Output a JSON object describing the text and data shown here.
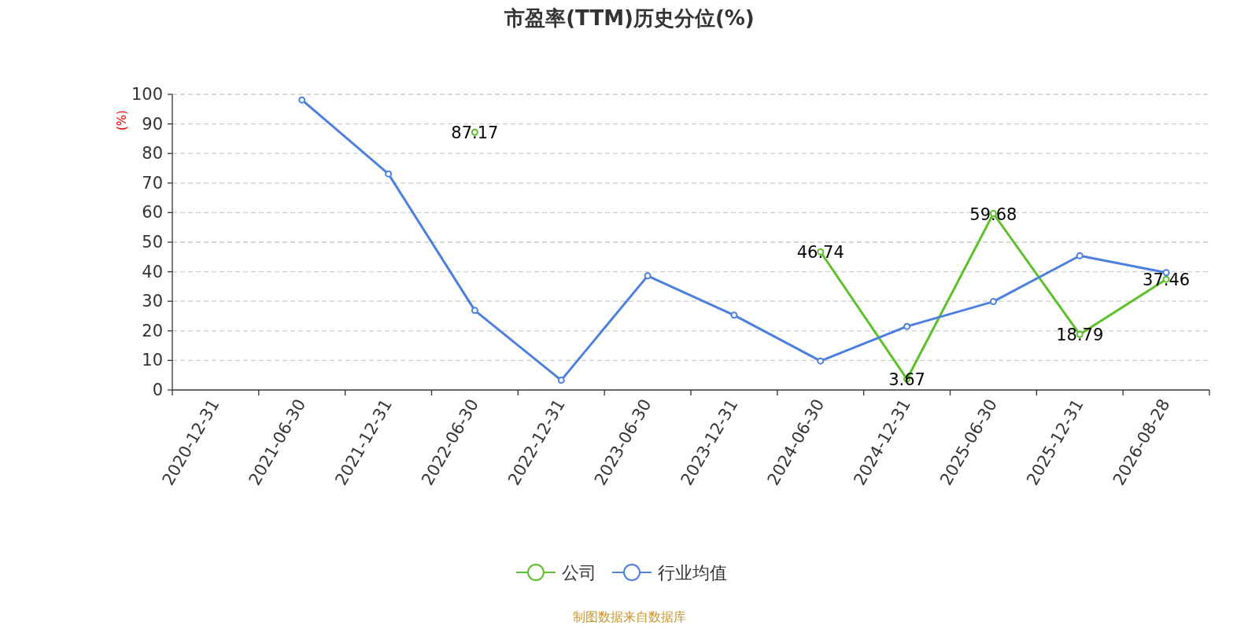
{
  "chart_data": {
    "type": "line",
    "title": "市盈率(TTM)历史分位(%)",
    "ylabel": "(%)",
    "categories": [
      "2020-12-31",
      "2021-06-30",
      "2021-12-31",
      "2022-06-30",
      "2022-12-31",
      "2023-06-30",
      "2023-12-31",
      "2024-06-30",
      "2024-12-31",
      "2025-06-30",
      "2025-12-31",
      "2026-08-28"
    ],
    "series": [
      {
        "name": "公司",
        "color": "#5bc12a",
        "values": [
          null,
          null,
          null,
          87.17,
          null,
          null,
          null,
          46.74,
          3.67,
          59.68,
          18.79,
          37.46
        ],
        "value_labels": [
          null,
          null,
          null,
          "87.17",
          null,
          null,
          null,
          "46.74",
          "3.67",
          "59.68",
          "18.79",
          "37.46"
        ]
      },
      {
        "name": "行业均值",
        "color": "#4d7fdf",
        "values": [
          null,
          98.1,
          73.1,
          26.9,
          3.3,
          38.6,
          25.3,
          9.8,
          21.5,
          29.9,
          45.4,
          39.7
        ]
      }
    ],
    "ylim": [
      0,
      100
    ],
    "yticks": [
      0,
      10,
      20,
      30,
      40,
      50,
      60,
      70,
      80,
      90,
      100
    ],
    "grid": "y",
    "legend": "bottom",
    "marker": "circle",
    "annotations": [
      "制图数据来自数据库"
    ]
  }
}
